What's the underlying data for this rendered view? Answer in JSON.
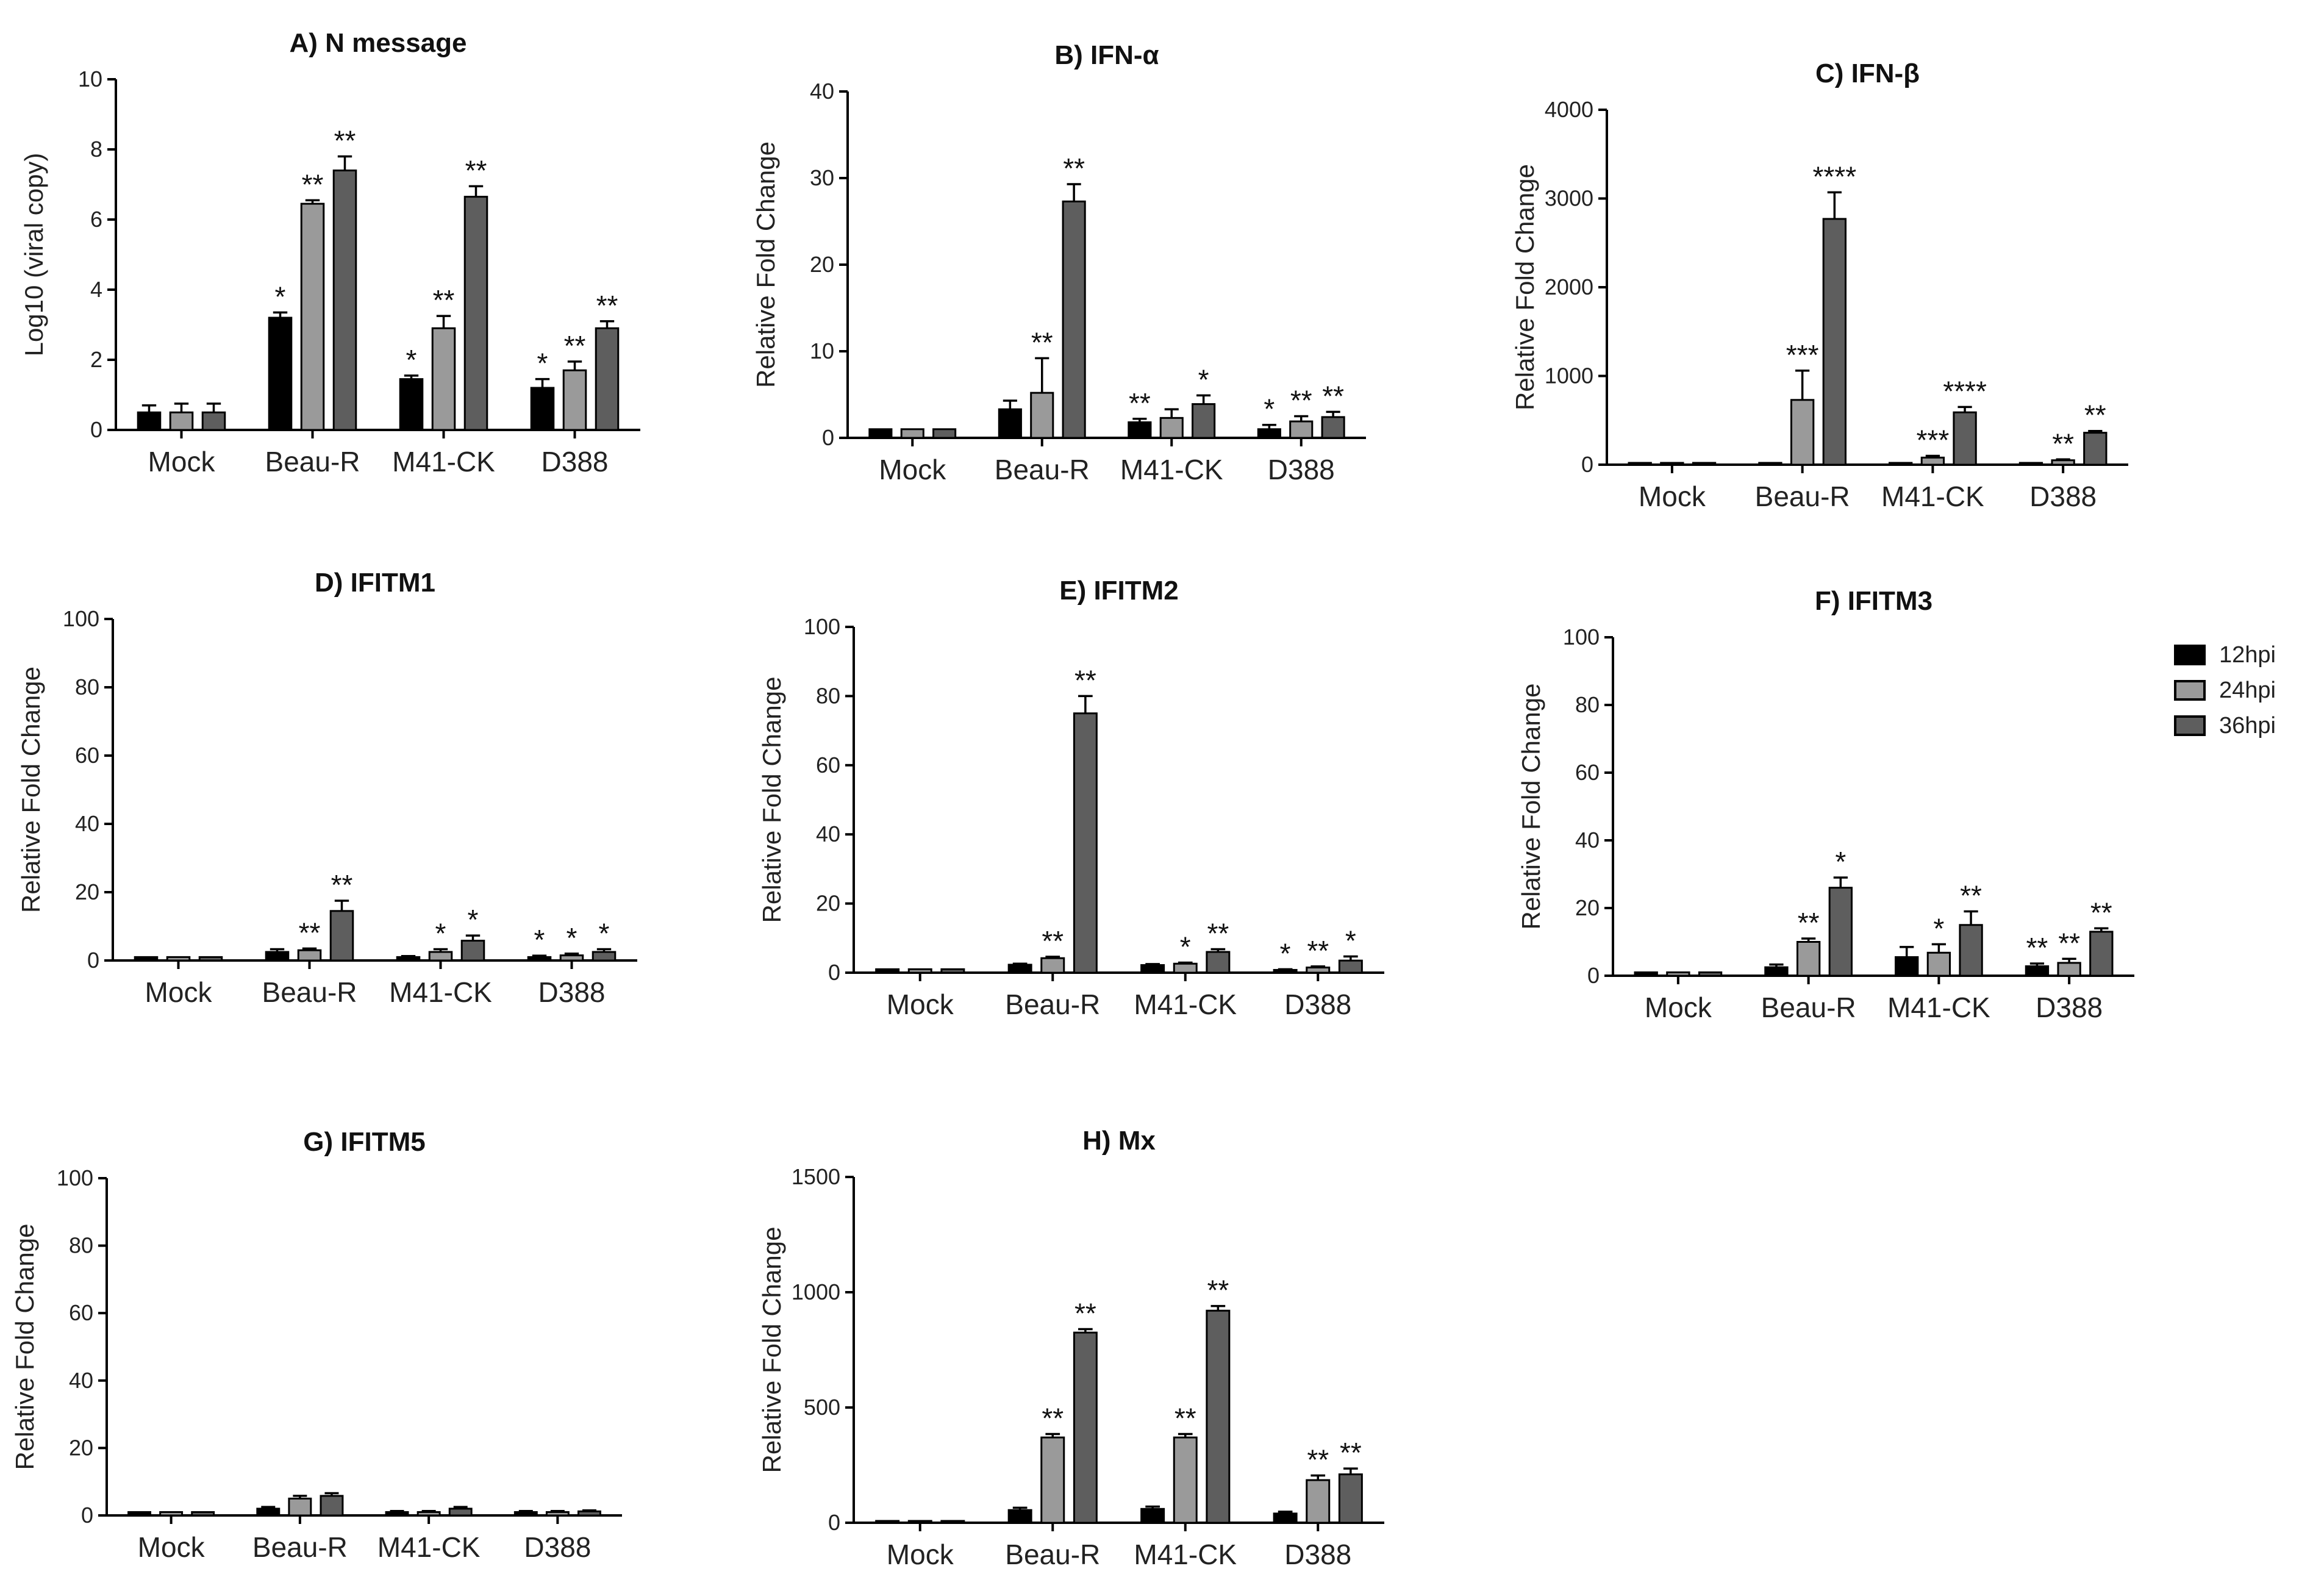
{
  "colors": {
    "12hpi": "#000000",
    "24hpi": "#9a9a9a",
    "36hpi": "#5e5e5e",
    "axis": "#000000",
    "text": "#222222"
  },
  "legend": {
    "items": [
      {
        "label": "12hpi",
        "color_key": "12hpi"
      },
      {
        "label": "24hpi",
        "color_key": "24hpi"
      },
      {
        "label": "36hpi",
        "color_key": "36hpi"
      }
    ]
  },
  "chart_data": [
    {
      "type": "bar",
      "panel": "A",
      "title": "A) N message",
      "ylabel": "Log10 (viral copy)",
      "xlabel": "",
      "ylim": [
        0,
        10
      ],
      "yticks": [
        0,
        2,
        4,
        6,
        8,
        10
      ],
      "categories": [
        "Mock",
        "Beau-R",
        "M41-CK",
        "D388"
      ],
      "series": [
        {
          "name": "12hpi",
          "values": [
            0.5,
            3.2,
            1.45,
            1.2
          ],
          "errors": [
            0.2,
            0.15,
            0.1,
            0.25
          ],
          "stars": [
            "",
            "*",
            "*",
            "*"
          ]
        },
        {
          "name": "24hpi",
          "values": [
            0.5,
            6.45,
            2.9,
            1.7
          ],
          "errors": [
            0.25,
            0.1,
            0.35,
            0.25
          ],
          "stars": [
            "",
            "**",
            "**",
            "**"
          ]
        },
        {
          "name": "36hpi",
          "values": [
            0.5,
            7.4,
            6.65,
            2.9
          ],
          "errors": [
            0.25,
            0.4,
            0.3,
            0.2
          ],
          "stars": [
            "",
            "**",
            "**",
            "**"
          ]
        }
      ]
    },
    {
      "type": "bar",
      "panel": "B",
      "title": "B) IFN-α",
      "ylabel": "Relative Fold Change",
      "xlabel": "",
      "ylim": [
        0,
        40
      ],
      "yticks": [
        0,
        10,
        20,
        30,
        40
      ],
      "categories": [
        "Mock",
        "Beau-R",
        "M41-CK",
        "D388"
      ],
      "series": [
        {
          "name": "12hpi",
          "values": [
            1,
            3.3,
            1.8,
            1.0
          ],
          "errors": [
            0,
            1.0,
            0.4,
            0.5
          ],
          "stars": [
            "",
            "",
            "**",
            "*"
          ]
        },
        {
          "name": "24hpi",
          "values": [
            1,
            5.2,
            2.3,
            1.9
          ],
          "errors": [
            0,
            4.0,
            1.0,
            0.6
          ],
          "stars": [
            "",
            "**",
            "",
            "**"
          ]
        },
        {
          "name": "36hpi",
          "values": [
            1,
            27.3,
            3.9,
            2.4
          ],
          "errors": [
            0,
            2.0,
            1.0,
            0.6
          ],
          "stars": [
            "",
            "**",
            "*",
            "**"
          ]
        }
      ]
    },
    {
      "type": "bar",
      "panel": "C",
      "title": "C) IFN-β",
      "ylabel": "Relative Fold Change",
      "xlabel": "",
      "ylim": [
        0,
        4000
      ],
      "yticks": [
        0,
        1000,
        2000,
        3000,
        4000
      ],
      "categories": [
        "Mock",
        "Beau-R",
        "M41-CK",
        "D388"
      ],
      "series": [
        {
          "name": "12hpi",
          "values": [
            1,
            5,
            5,
            3
          ],
          "errors": [
            0,
            2,
            2,
            1
          ],
          "stars": [
            "",
            "",
            "",
            ""
          ]
        },
        {
          "name": "24hpi",
          "values": [
            1,
            730,
            80,
            50
          ],
          "errors": [
            0,
            330,
            20,
            10
          ],
          "stars": [
            "",
            "***",
            "***",
            "**"
          ]
        },
        {
          "name": "36hpi",
          "values": [
            1,
            2770,
            590,
            360
          ],
          "errors": [
            0,
            300,
            60,
            20
          ],
          "stars": [
            "",
            "****",
            "****",
            "**"
          ]
        }
      ]
    },
    {
      "type": "bar",
      "panel": "D",
      "title": "D) IFITM1",
      "ylabel": "Relative Fold Change",
      "xlabel": "",
      "ylim": [
        0,
        100
      ],
      "yticks": [
        0,
        20,
        40,
        60,
        80,
        100
      ],
      "categories": [
        "Mock",
        "Beau-R",
        "M41-CK",
        "D388"
      ],
      "series": [
        {
          "name": "12hpi",
          "values": [
            1,
            2.5,
            1,
            1
          ],
          "errors": [
            0,
            0.8,
            0.3,
            0.4
          ],
          "stars": [
            "",
            "",
            "",
            "*"
          ]
        },
        {
          "name": "24hpi",
          "values": [
            1,
            3,
            2.5,
            1.5
          ],
          "errors": [
            0,
            0.5,
            0.8,
            0.5
          ],
          "stars": [
            "",
            "**",
            "*",
            "*"
          ]
        },
        {
          "name": "36hpi",
          "values": [
            1,
            14.5,
            5.8,
            2.5
          ],
          "errors": [
            0,
            3,
            1.5,
            0.8
          ],
          "stars": [
            "",
            "**",
            "*",
            "*"
          ]
        }
      ]
    },
    {
      "type": "bar",
      "panel": "E",
      "title": "E) IFITM2",
      "ylabel": "Relative Fold Change",
      "xlabel": "",
      "ylim": [
        0,
        100
      ],
      "yticks": [
        0,
        20,
        40,
        60,
        80,
        100
      ],
      "categories": [
        "Mock",
        "Beau-R",
        "M41-CK",
        "D388"
      ],
      "series": [
        {
          "name": "12hpi",
          "values": [
            1,
            2.3,
            2.2,
            0.8
          ],
          "errors": [
            0,
            0.3,
            0.3,
            0.2
          ],
          "stars": [
            "",
            "",
            "",
            "*"
          ]
        },
        {
          "name": "24hpi",
          "values": [
            1,
            4.2,
            2.6,
            1.5
          ],
          "errors": [
            0,
            0.4,
            0.3,
            0.3
          ],
          "stars": [
            "",
            "**",
            "*",
            "**"
          ]
        },
        {
          "name": "36hpi",
          "values": [
            1,
            75,
            6,
            3.5
          ],
          "errors": [
            0,
            5,
            0.8,
            1.2
          ],
          "stars": [
            "",
            "**",
            "**",
            "*"
          ]
        }
      ]
    },
    {
      "type": "bar",
      "panel": "F",
      "title": "F) IFITM3",
      "ylabel": "Relative Fold Change",
      "xlabel": "",
      "ylim": [
        0,
        100
      ],
      "yticks": [
        0,
        20,
        40,
        60,
        80,
        100
      ],
      "categories": [
        "Mock",
        "Beau-R",
        "M41-CK",
        "D388"
      ],
      "series": [
        {
          "name": "12hpi",
          "values": [
            1,
            2.5,
            5.5,
            2.8
          ],
          "errors": [
            0,
            0.8,
            3,
            0.8
          ],
          "stars": [
            "",
            "",
            "",
            "**"
          ]
        },
        {
          "name": "24hpi",
          "values": [
            1,
            10,
            6.8,
            3.8
          ],
          "errors": [
            0,
            1,
            2.5,
            1.2
          ],
          "stars": [
            "",
            "**",
            "*",
            "**"
          ]
        },
        {
          "name": "36hpi",
          "values": [
            1,
            26,
            15,
            13
          ],
          "errors": [
            0,
            3,
            4,
            1
          ],
          "stars": [
            "",
            "*",
            "**",
            "**"
          ]
        }
      ]
    },
    {
      "type": "bar",
      "panel": "G",
      "title": "G) IFITM5",
      "ylabel": "Relative Fold Change",
      "xlabel": "",
      "ylim": [
        0,
        100
      ],
      "yticks": [
        0,
        20,
        40,
        60,
        80,
        100
      ],
      "categories": [
        "Mock",
        "Beau-R",
        "M41-CK",
        "D388"
      ],
      "series": [
        {
          "name": "12hpi",
          "values": [
            1,
            2,
            1,
            1
          ],
          "errors": [
            0,
            0.5,
            0.3,
            0.3
          ],
          "stars": [
            "",
            "",
            "",
            ""
          ]
        },
        {
          "name": "24hpi",
          "values": [
            1,
            5,
            1,
            1
          ],
          "errors": [
            0,
            0.8,
            0.3,
            0.3
          ],
          "stars": [
            "",
            "",
            "",
            ""
          ]
        },
        {
          "name": "36hpi",
          "values": [
            1,
            5.8,
            2,
            1.2
          ],
          "errors": [
            0,
            0.8,
            0.5,
            0.3
          ],
          "stars": [
            "",
            "",
            "",
            ""
          ]
        }
      ]
    },
    {
      "type": "bar",
      "panel": "H",
      "title": "H) Mx",
      "ylabel": "Relative Fold Change",
      "xlabel": "",
      "ylim": [
        0,
        1500
      ],
      "yticks": [
        0,
        500,
        1000,
        1500
      ],
      "categories": [
        "Mock",
        "Beau-R",
        "M41-CK",
        "D388"
      ],
      "series": [
        {
          "name": "12hpi",
          "values": [
            1,
            55,
            60,
            40
          ],
          "errors": [
            0,
            10,
            10,
            8
          ],
          "stars": [
            "",
            "",
            "",
            ""
          ]
        },
        {
          "name": "24hpi",
          "values": [
            1,
            370,
            370,
            185
          ],
          "errors": [
            0,
            15,
            15,
            20
          ],
          "stars": [
            "",
            "**",
            "**",
            "**"
          ]
        },
        {
          "name": "36hpi",
          "values": [
            1,
            825,
            920,
            210
          ],
          "errors": [
            0,
            15,
            20,
            25
          ],
          "stars": [
            "",
            "**",
            "**",
            "**"
          ]
        }
      ]
    }
  ]
}
